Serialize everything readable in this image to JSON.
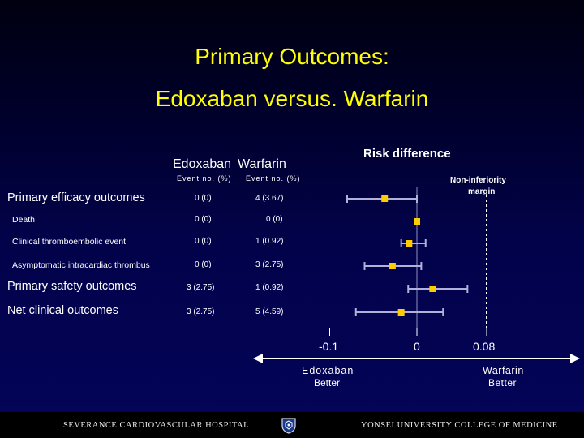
{
  "title_line1": "Primary Outcomes:",
  "title_line2": "Edoxaban versus. Warfarin",
  "columns": {
    "edoxaban": "Edoxaban",
    "warfarin": "Warfarin",
    "edoxaban_sub": "Event no. (%)",
    "warfarin_sub": "Event no. (%)",
    "risk_difference": "Risk difference"
  },
  "margin_label_line1": "Non-inferiority",
  "margin_label_line2": "margin",
  "rows": [
    {
      "label": "Primary efficacy outcomes",
      "edoxaban": "0 (0)",
      "warfarin": "4 (3.67)"
    },
    {
      "label": "Death",
      "edoxaban": "0 (0)",
      "warfarin": "0 (0)"
    },
    {
      "label": "Clinical thromboembolic event",
      "edoxaban": "0 (0)",
      "warfarin": "1 (0.92)"
    },
    {
      "label": "Asymptomatic intracardiac thrombus",
      "edoxaban": "0 (0)",
      "warfarin": "3 (2.75)"
    },
    {
      "label": "Primary safety outcomes",
      "edoxaban": "3 (2.75)",
      "warfarin": "1 (0.92)"
    },
    {
      "label": "Net clinical outcomes",
      "edoxaban": "3 (2.75)",
      "warfarin": "5 (4.59)"
    }
  ],
  "axis_ticks": [
    "-0.1",
    "0",
    "0.08"
  ],
  "favors_left": "Edoxaban",
  "favors_left_2": "Better",
  "favors_right": "Warfarin",
  "favors_right_2": "Better",
  "footer": {
    "left": "SEVERANCE CARDIOVASCULAR HOSPITAL",
    "right": "YONSEI UNIVERSITY COLLEGE OF MEDICINE",
    "seal_icon": "university-seal-icon"
  },
  "colors": {
    "title": "#ffff00",
    "marker": "#ffcc00",
    "ci_line": "#b0b0d8",
    "margin_line": "#ffffff"
  },
  "chart_data": {
    "type": "forest",
    "categories": [
      "Primary efficacy outcomes",
      "Death",
      "Clinical thromboembolic event",
      "Asymptomatic intracardiac thrombus",
      "Primary safety outcomes",
      "Net clinical outcomes"
    ],
    "estimates": [
      -0.037,
      0.0,
      -0.009,
      -0.028,
      0.018,
      -0.018
    ],
    "ci_lower": [
      -0.08,
      0.0,
      -0.018,
      -0.06,
      -0.01,
      -0.07
    ],
    "ci_upper": [
      0.0,
      0.0,
      0.01,
      0.005,
      0.058,
      0.03
    ],
    "xlim": [
      -0.12,
      0.12
    ],
    "reference_value": 0,
    "non_inferiority_margin": 0.08,
    "ticks": [
      -0.1,
      0,
      0.08
    ]
  }
}
